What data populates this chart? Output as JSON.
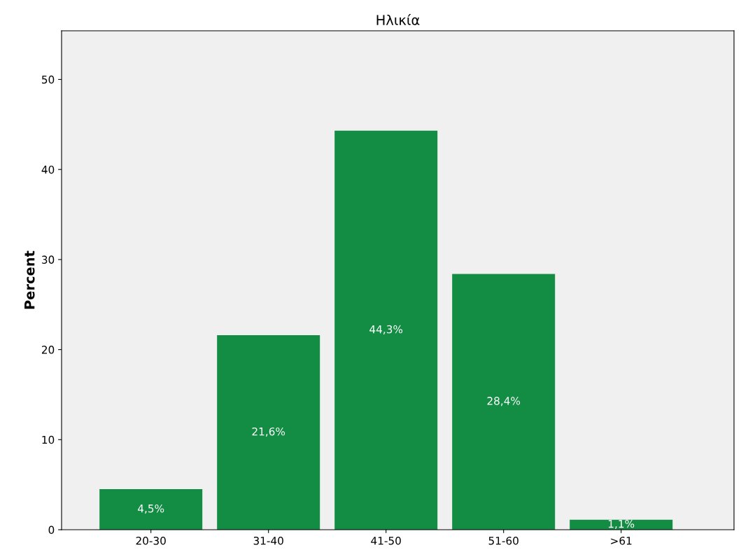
{
  "chart_data": {
    "type": "bar",
    "title": "Ηλικία",
    "ylabel": "Percent",
    "categories": [
      "20-30",
      "31-40",
      "41-50",
      "51-60",
      ">61"
    ],
    "values": [
      4.5,
      21.6,
      44.3,
      28.4,
      1.1
    ],
    "value_labels": [
      "4,5%",
      "21,6%",
      "44,3%",
      "28,4%",
      "1,1%"
    ],
    "color": "#138d43",
    "ylim": [
      0,
      55.4
    ],
    "yticks": [
      0,
      10,
      20,
      30,
      40,
      50
    ],
    "grid": false
  }
}
